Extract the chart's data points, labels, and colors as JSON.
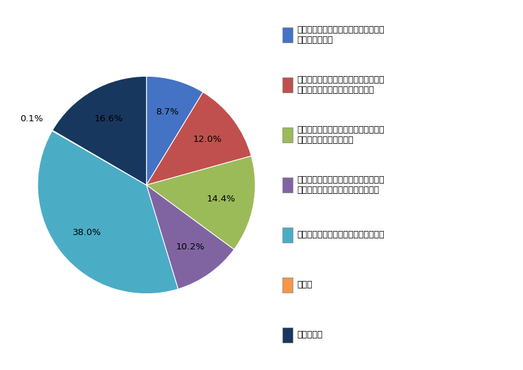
{
  "labels": [
    "すでにセルフブランディングを意識し\nて取組んでいる",
    "セルフブランディングには興味があり\n、とても取組みたいと思っている",
    "セルフブランディングには興味があり\n、できれば取り組みたい",
    "セルフブランディングには興味がある\nが、取り組みたいとは思っていない",
    "セルフブランディングには興味がない",
    "その他",
    "わからない"
  ],
  "values": [
    8.7,
    12.0,
    14.4,
    10.2,
    38.0,
    0.1,
    16.6
  ],
  "colors": [
    "#4472C4",
    "#C0504D",
    "#9BBB59",
    "#8064A2",
    "#4BACC6",
    "#F79646",
    "#17375E"
  ],
  "pct_labels": [
    "8.7%",
    "12.0%",
    "14.4%",
    "10.2%",
    "38.0%",
    "0.1%",
    "16.6%"
  ],
  "startangle": 90,
  "background_color": "#FFFFFF"
}
